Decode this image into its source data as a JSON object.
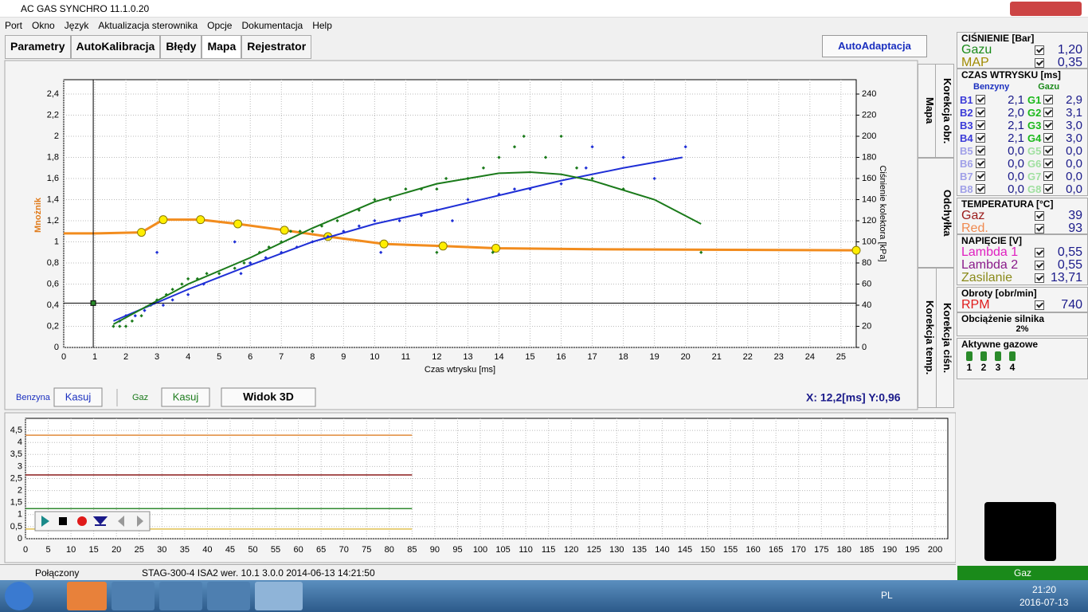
{
  "window": {
    "title": "AC GAS SYNCHRO  11.1.0.20"
  },
  "menu": [
    "Port",
    "Okno",
    "Język",
    "Aktualizacja sterownika",
    "Opcje",
    "Dokumentacja",
    "Help"
  ],
  "tabs": [
    "Parametry",
    "AutoKalibracja",
    "Błędy",
    "Mapa",
    "Rejestrator"
  ],
  "auto_button": "AutoAdaptacja",
  "side_tabs": [
    "Mapa",
    "Korekcja obr.",
    "Odchyłka",
    "Korekcja ciśn.",
    "Korekcja temp."
  ],
  "map_chart": {
    "type": "line",
    "x_label": "Czas wtrysku [ms]",
    "y_label": "Mnożnik",
    "y2_label": "Ciśnienie kolektora [kPa]",
    "xlim": [
      0,
      25.49
    ],
    "ylim": [
      0,
      2.536
    ],
    "y2lim": [
      0,
      253.6
    ],
    "xticks": [
      0,
      1,
      2,
      3,
      4,
      5,
      6,
      7,
      8,
      9,
      10,
      11,
      12,
      13,
      14,
      15,
      16,
      17,
      18,
      19,
      20,
      21,
      22,
      23,
      24,
      25
    ],
    "yticks": [
      0,
      {
        "value": 0.2,
        "label": "0,2"
      },
      {
        "value": 0.4,
        "label": "0,4"
      },
      {
        "value": 0.6,
        "label": "0,6"
      },
      {
        "value": 0.8,
        "label": "0,8"
      },
      1,
      {
        "value": 1.2,
        "label": "1,2"
      },
      {
        "value": 1.4,
        "label": "1,4"
      },
      {
        "value": 1.6,
        "label": "1,6"
      },
      {
        "value": 1.8,
        "label": "1,8"
      },
      2,
      {
        "value": 2.2,
        "label": "2,2"
      },
      {
        "value": 2.4,
        "label": "2,4"
      }
    ],
    "y2ticks": [
      0,
      20,
      40,
      60,
      80,
      100,
      120,
      140,
      160,
      180,
      200,
      220,
      240
    ],
    "grid": true,
    "series": [
      {
        "kind": "line",
        "color": "#f28c1e",
        "x": [
          0,
          1,
          2.5,
          3.2,
          4.4,
          5.6,
          7.1,
          8.5,
          10.3,
          12.2,
          13.9,
          17,
          25.49
        ],
        "values": [
          1.08,
          1.08,
          1.09,
          1.21,
          1.21,
          1.17,
          1.11,
          1.05,
          0.98,
          0.96,
          0.94,
          0.93,
          0.92
        ]
      },
      {
        "kind": "markers",
        "color": "#ffee00",
        "x": [
          2.5,
          3.2,
          4.4,
          5.6,
          7.1,
          8.5,
          10.3,
          12.2,
          13.9,
          25.49
        ],
        "values": [
          1.09,
          1.21,
          1.21,
          1.17,
          1.11,
          1.05,
          0.98,
          0.96,
          0.94,
          0.92
        ]
      },
      {
        "kind": "scatter",
        "color": "#1a7a1a",
        "x": [
          1.6,
          1.8,
          2,
          2.2,
          2.5,
          2.8,
          3,
          3.3,
          3.5,
          3.8,
          4,
          4.3,
          4.6,
          5,
          5.5,
          5.8,
          6,
          6.3,
          6.6,
          7,
          7.3,
          7.6,
          8,
          8.3,
          8.8,
          9.5,
          10,
          10.5,
          11,
          11.5,
          12,
          12.3,
          13,
          13.5,
          14,
          14.5,
          14.8,
          15.5,
          16,
          16.5,
          17,
          18,
          20.5,
          12,
          13.8
        ],
        "values": [
          0.2,
          0.2,
          0.2,
          0.25,
          0.3,
          0.4,
          0.45,
          0.5,
          0.55,
          0.6,
          0.65,
          0.65,
          0.7,
          0.7,
          0.75,
          0.8,
          0.8,
          0.9,
          0.95,
          1,
          1.1,
          1.1,
          1.1,
          1.15,
          1.2,
          1.3,
          1.4,
          1.4,
          1.5,
          1.5,
          1.5,
          1.6,
          1.6,
          1.7,
          1.8,
          1.9,
          2,
          1.8,
          2,
          1.7,
          1.6,
          1.5,
          0.9,
          0.9,
          0.9
        ]
      },
      {
        "kind": "scatter",
        "color": "#1f2fd6",
        "x": [
          1.8,
          2,
          2.3,
          2.6,
          3,
          3.2,
          3.5,
          4,
          4.5,
          5.5,
          5.7,
          6,
          6.5,
          7,
          7.5,
          8,
          8.5,
          9,
          9.5,
          10,
          10.2,
          10.8,
          11.5,
          12,
          12.5,
          13,
          14,
          14.5,
          15,
          16,
          16.8,
          17,
          18,
          19,
          20
        ],
        "values": [
          0.25,
          0.3,
          0.3,
          0.35,
          0.9,
          0.4,
          0.45,
          0.5,
          0.6,
          1,
          0.7,
          0.8,
          0.85,
          0.9,
          0.95,
          1,
          1.05,
          1.1,
          1.15,
          1.2,
          0.9,
          1.2,
          1.25,
          1.3,
          1.2,
          1.4,
          1.45,
          1.5,
          1.5,
          1.55,
          1.7,
          1.9,
          1.8,
          1.6,
          1.9
        ]
      },
      {
        "kind": "line",
        "color": "#1f2fd6",
        "x": [
          1.6,
          4,
          6,
          8,
          10,
          12,
          14,
          16,
          18,
          19.9
        ],
        "values": [
          0.25,
          0.55,
          0.78,
          1,
          1.17,
          1.3,
          1.44,
          1.58,
          1.7,
          1.8
        ]
      },
      {
        "kind": "line",
        "color": "#1a7a1a",
        "x": [
          1.6,
          4,
          6,
          8,
          10,
          12,
          14,
          15,
          16,
          17,
          19,
          20.5
        ],
        "values": [
          0.22,
          0.6,
          0.85,
          1.13,
          1.38,
          1.55,
          1.65,
          1.66,
          1.64,
          1.58,
          1.4,
          1.17
        ]
      }
    ],
    "cursor": {
      "x": 0.95,
      "y": 0.42
    }
  },
  "controls": {
    "petrol": "Benzyna",
    "clear_petrol": "Kasuj",
    "gas": "Gaz",
    "clear_gas": "Kasuj",
    "view3d": "Widok 3D",
    "position": "X: 12,2[ms] Y:0,96"
  },
  "recorder_chart": {
    "type": "line",
    "xlim": [
      0,
      202.8
    ],
    "ylim": [
      0,
      5
    ],
    "xticks": [
      0,
      5,
      10,
      15,
      20,
      25,
      30,
      35,
      40,
      45,
      50,
      55,
      60,
      65,
      70,
      75,
      80,
      85,
      90,
      95,
      100,
      105,
      110,
      115,
      120,
      125,
      130,
      135,
      140,
      145,
      150,
      155,
      160,
      165,
      170,
      175,
      180,
      185,
      190,
      195,
      200
    ],
    "yticks": [
      0,
      {
        "value": 0.5,
        "label": "0,5"
      },
      1,
      {
        "value": 1.5,
        "label": "1,5"
      },
      2,
      {
        "value": 2.5,
        "label": "2,5"
      },
      3,
      {
        "value": 3.5,
        "label": "3,5"
      },
      4,
      {
        "value": 4.5,
        "label": "4,5"
      }
    ],
    "grid": true,
    "series": [
      {
        "color": "#e08a3a",
        "x": [
          0,
          85
        ],
        "values": [
          4.3,
          4.3
        ]
      },
      {
        "color": "#8b1a1a",
        "x": [
          0,
          85
        ],
        "values": [
          2.65,
          2.65
        ]
      },
      {
        "color": "#2f8a2f",
        "x": [
          0,
          85
        ],
        "values": [
          1.25,
          1.25
        ]
      },
      {
        "color": "#e0c050",
        "x": [
          0,
          85
        ],
        "values": [
          0.4,
          0.4
        ]
      }
    ]
  },
  "panel": {
    "pressure": {
      "title": "CIŚNIENIE [Bar]",
      "rows": [
        {
          "label": "Gazu",
          "value": "1,20",
          "color": "#1a8a1a"
        },
        {
          "label": "MAP",
          "value": "0,35",
          "color": "#a08a00"
        }
      ]
    },
    "injection": {
      "title": "CZAS WTRYSKU  [ms]",
      "petrol_header": "Benzyny",
      "gas_header": "Gazu",
      "petrol": [
        {
          "label": "B1",
          "value": "2,1"
        },
        {
          "label": "B2",
          "value": "2,0"
        },
        {
          "label": "B3",
          "value": "2,1"
        },
        {
          "label": "B4",
          "value": "2,1"
        },
        {
          "label": "B5",
          "value": "0,0"
        },
        {
          "label": "B6",
          "value": "0,0"
        },
        {
          "label": "B7",
          "value": "0,0"
        },
        {
          "label": "B8",
          "value": "0,0"
        }
      ],
      "gas": [
        {
          "label": "G1",
          "value": "2,9"
        },
        {
          "label": "G2",
          "value": "3,1"
        },
        {
          "label": "G3",
          "value": "3,0"
        },
        {
          "label": "G4",
          "value": "3,0"
        },
        {
          "label": "G5",
          "value": "0,0"
        },
        {
          "label": "G6",
          "value": "0,0"
        },
        {
          "label": "G7",
          "value": "0,0"
        },
        {
          "label": "G8",
          "value": "0,0"
        }
      ]
    },
    "temperature": {
      "title": "TEMPERATURA  [°C]",
      "rows": [
        {
          "label": "Gaz",
          "value": "39",
          "color": "#9a1a1a"
        },
        {
          "label": "Red.",
          "value": "93",
          "color": "#f08a50"
        }
      ]
    },
    "voltage": {
      "title": "NAPIĘCIE [V]",
      "rows": [
        {
          "label": "Lambda 1",
          "value": "0,55",
          "color": "#e020c0"
        },
        {
          "label": "Lambda 2",
          "value": "0,55",
          "color": "#8a1a8a"
        },
        {
          "label": "Zasilanie",
          "value": "13,71",
          "color": "#8a8a1a"
        }
      ]
    },
    "rpm": {
      "title": "Obroty [obr/min]",
      "rows": [
        {
          "label": "RPM",
          "value": "740",
          "color": "#e01a1a"
        }
      ]
    },
    "load": {
      "title": "Obciążenie silnika",
      "value": "2%"
    },
    "injectors": {
      "title": "Aktywne gazowe",
      "labels": [
        "1",
        "2",
        "3",
        "4"
      ]
    },
    "mode": "Gaz"
  },
  "status": [
    "Połączony",
    "STAG-300-4 ISA2  wer. 10.1  3.0.0   2014-06-13 14:21:50"
  ],
  "taskbar": {
    "lang": "PL",
    "time": "21:20",
    "date": "2016-07-13"
  }
}
